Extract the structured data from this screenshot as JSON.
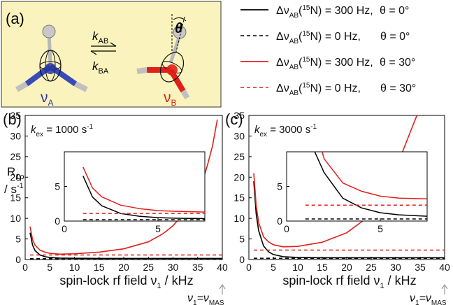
{
  "panel_a": {
    "label": "(a)",
    "k_ab": "k",
    "k_ab_sub": "AB",
    "k_ba": "k",
    "k_ba_sub": "BA",
    "state_a": "ν",
    "state_a_sub": "A",
    "state_b": "ν",
    "state_b_sub": "B",
    "theta": "θ",
    "colors": {
      "background": "#fbf3bd",
      "state_a": "#2b3aa0",
      "state_b": "#e0201a"
    }
  },
  "legend": [
    {
      "delta": "Δν",
      "sub": "AB",
      "iso": "(15N)",
      "iso_sup": "15",
      "iso_el": "N",
      "value": "= 300 Hz,",
      "theta": "θ = 0°",
      "color": "#000000",
      "dash": false
    },
    {
      "delta": "Δν",
      "sub": "AB",
      "iso": "(15N)",
      "iso_sup": "15",
      "iso_el": "N",
      "value": "= 0 Hz,",
      "theta": "θ = 0°",
      "color": "#000000",
      "dash": true
    },
    {
      "delta": "Δν",
      "sub": "AB",
      "iso": "(15N)",
      "iso_sup": "15",
      "iso_el": "N",
      "value": "= 300 Hz,",
      "theta": "θ = 30°",
      "color": "#e0201a",
      "dash": false
    },
    {
      "delta": "Δν",
      "sub": "AB",
      "iso": "(15N)",
      "iso_sup": "15",
      "iso_el": "N",
      "value": "= 0 Hz,",
      "theta": "θ = 30°",
      "color": "#e0201a",
      "dash": true
    }
  ],
  "axes_text": {
    "ylabel_1": "R",
    "ylabel_1_sub": "1ρ",
    "ylabel_2": "/ s",
    "ylabel_2_sup": "-1",
    "xlabel": "spin-lock rf field ν",
    "xlabel_sub": "1",
    "xlabel_unit": " / kHz",
    "mas_label": "ν",
    "mas_sub1": "1",
    "mas_eq": "=ν",
    "mas_sub2": "MAS"
  },
  "chart_data": [
    {
      "type": "line",
      "panel": "(b)",
      "annotation": "k",
      "annotation_sub": "ex",
      "annotation_value": " = 1000 s",
      "annotation_sup": "-1",
      "xlim": [
        0,
        40
      ],
      "ylim": [
        0,
        35
      ],
      "xticks": [
        0,
        5,
        10,
        15,
        20,
        25,
        30,
        35,
        40
      ],
      "yticks": [
        0,
        5,
        10,
        15,
        20,
        25,
        30,
        35
      ],
      "series": [
        {
          "color": "#000000",
          "dash": false,
          "x": [
            1,
            1.5,
            2,
            3,
            4,
            5,
            7,
            10,
            15,
            20,
            30,
            40
          ],
          "y": [
            6.5,
            3.5,
            2.2,
            1.1,
            0.7,
            0.5,
            0.35,
            0.3,
            0.28,
            0.28,
            0.28,
            0.28
          ]
        },
        {
          "color": "#000000",
          "dash": true,
          "x": [
            1,
            40
          ],
          "y": [
            0.2,
            0.2
          ]
        },
        {
          "color": "#e0201a",
          "dash": false,
          "x": [
            1,
            1.5,
            2,
            3,
            4,
            5,
            7,
            10,
            15,
            20,
            25,
            28,
            30,
            32,
            34,
            36,
            37,
            38,
            39
          ],
          "y": [
            8,
            4.8,
            3.5,
            2.3,
            1.8,
            1.5,
            1.3,
            1.4,
            1.8,
            2.6,
            4.3,
            6.3,
            8.2,
            11,
            14.5,
            19,
            23,
            27.5,
            34
          ]
        },
        {
          "color": "#e0201a",
          "dash": true,
          "x": [
            1,
            40
          ],
          "y": [
            1.1,
            1.1
          ]
        }
      ],
      "inset": {
        "xlim": [
          0,
          7.5
        ],
        "ylim": [
          0,
          10
        ],
        "xticks": [
          0,
          5
        ],
        "yticks": [
          0,
          5
        ],
        "series": [
          {
            "color": "#000000",
            "dash": false,
            "x": [
              1,
              1.5,
              2,
              3,
              4,
              5,
              6,
              7.5
            ],
            "y": [
              6.5,
              3.5,
              2.2,
              1.1,
              0.7,
              0.5,
              0.4,
              0.35
            ]
          },
          {
            "color": "#000000",
            "dash": true,
            "x": [
              1,
              7.5
            ],
            "y": [
              0.2,
              0.2
            ]
          },
          {
            "color": "#e0201a",
            "dash": false,
            "x": [
              1,
              1.5,
              2,
              3,
              4,
              5,
              6,
              7.5
            ],
            "y": [
              7.8,
              4.8,
              3.5,
              2.3,
              1.8,
              1.5,
              1.4,
              1.3
            ]
          },
          {
            "color": "#e0201a",
            "dash": true,
            "x": [
              1,
              7.5
            ],
            "y": [
              1.1,
              1.1
            ]
          }
        ]
      }
    },
    {
      "type": "line",
      "panel": "(c)",
      "annotation": "k",
      "annotation_sub": "ex",
      "annotation_value": " = 3000 s",
      "annotation_sup": "-1",
      "xlim": [
        0,
        40
      ],
      "ylim": [
        0,
        35
      ],
      "xticks": [
        0,
        5,
        10,
        15,
        20,
        25,
        30,
        35,
        40
      ],
      "yticks": [
        0,
        5,
        10,
        15,
        20,
        25,
        30,
        35
      ],
      "series": [
        {
          "color": "#000000",
          "dash": false,
          "x": [
            1,
            1.5,
            2,
            3,
            4,
            5,
            7,
            10,
            15,
            20,
            30,
            40
          ],
          "y": [
            19,
            11,
            7,
            3.3,
            1.9,
            1.2,
            0.7,
            0.5,
            0.45,
            0.45,
            0.45,
            0.45
          ]
        },
        {
          "color": "#000000",
          "dash": true,
          "x": [
            1,
            40
          ],
          "y": [
            0.3,
            0.3
          ]
        },
        {
          "color": "#e0201a",
          "dash": false,
          "x": [
            1,
            1.5,
            2,
            3,
            4,
            5,
            7,
            10,
            15,
            20,
            24,
            27,
            29,
            31,
            33,
            35
          ],
          "y": [
            21,
            13,
            9,
            5.5,
            4.3,
            3.6,
            3.1,
            3.2,
            4.2,
            6.5,
            10,
            14.5,
            19,
            25,
            31,
            37
          ]
        },
        {
          "color": "#e0201a",
          "dash": true,
          "x": [
            1,
            40
          ],
          "y": [
            2.3,
            2.3
          ]
        }
      ],
      "inset": {
        "xlim": [
          0,
          7.5
        ],
        "ylim": [
          0,
          10
        ],
        "xticks": [
          0,
          5
        ],
        "yticks": [
          0,
          5
        ],
        "series": [
          {
            "color": "#000000",
            "dash": false,
            "x": [
              1.5,
              2,
              3,
              4,
              5,
              6,
              7.5
            ],
            "y": [
              10,
              7,
              3.3,
              1.9,
              1.2,
              0.9,
              0.7
            ]
          },
          {
            "color": "#000000",
            "dash": true,
            "x": [
              1,
              7.5
            ],
            "y": [
              0.3,
              0.3
            ]
          },
          {
            "color": "#e0201a",
            "dash": false,
            "x": [
              1.9,
              2,
              3,
              4,
              5,
              6,
              7.5
            ],
            "y": [
              10,
              9,
              5.5,
              4.3,
              3.6,
              3.3,
              3.2
            ]
          },
          {
            "color": "#e0201a",
            "dash": true,
            "x": [
              1,
              7.5
            ],
            "y": [
              2.3,
              2.3
            ]
          }
        ]
      }
    }
  ]
}
